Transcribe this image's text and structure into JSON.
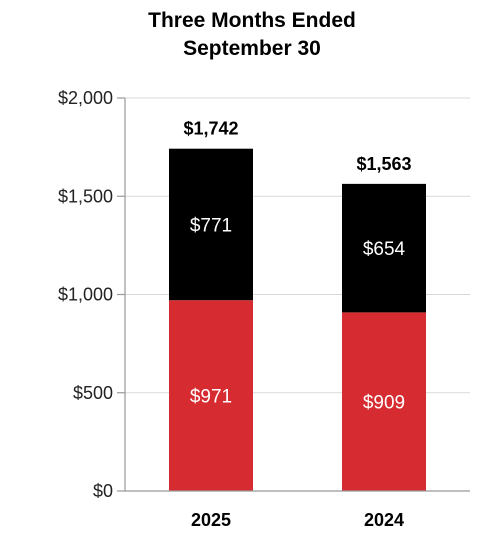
{
  "chart_data": {
    "type": "bar",
    "stacked": true,
    "title": [
      "Three Months Ended",
      "September 30"
    ],
    "categories": [
      "2025",
      "2024"
    ],
    "series": [
      {
        "values": [
          971,
          909
        ],
        "labels": [
          "$971",
          "$909"
        ],
        "color": "#d62b30"
      },
      {
        "values": [
          771,
          654
        ],
        "labels": [
          "$771",
          "$654"
        ],
        "color": "#000000"
      }
    ],
    "totals": {
      "values": [
        1742,
        1563
      ],
      "labels": [
        "$1,742",
        "$1,563"
      ]
    },
    "ylim": [
      0,
      2000
    ],
    "yticks": [
      0,
      500,
      1000,
      1500,
      2000
    ],
    "ytick_labels": [
      "$0",
      "$500",
      "$1,000",
      "$1,500",
      "$2,000"
    ],
    "grid": true,
    "grid_color": "#d9d9d9",
    "axis_color": "#999999",
    "legend": "none"
  }
}
